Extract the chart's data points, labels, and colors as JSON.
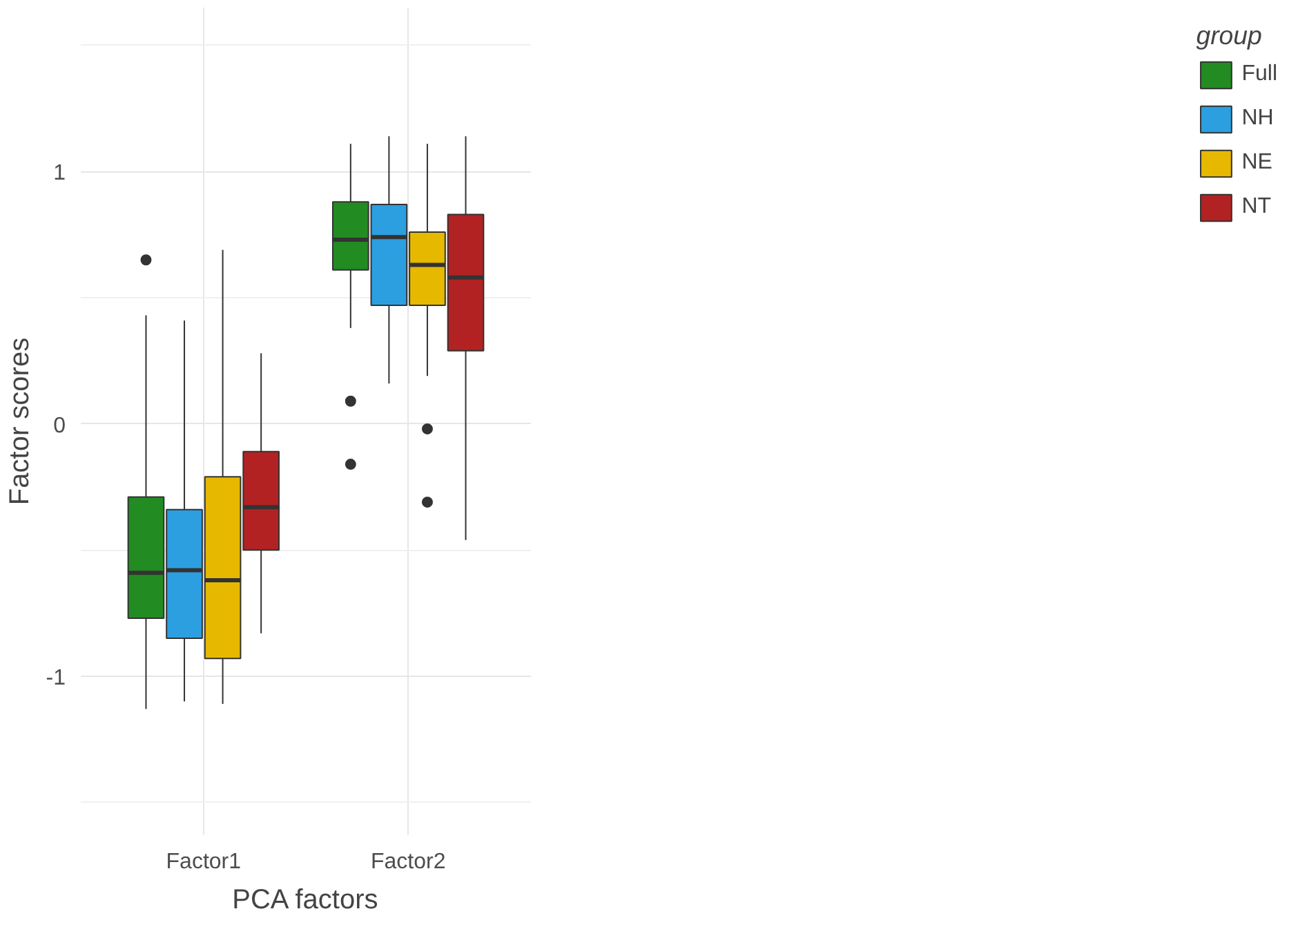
{
  "chart_data": {
    "type": "box",
    "xlabel": "PCA factors",
    "ylabel": "Factor scores",
    "legend_title": "group",
    "categories": [
      "Factor1",
      "Factor2"
    ],
    "series": [
      {
        "name": "Full",
        "color": "#228b22",
        "boxes": [
          {
            "low": -1.13,
            "q1": -0.77,
            "median": -0.59,
            "q3": -0.29,
            "high": 0.43,
            "outliers": [
              0.65
            ]
          },
          {
            "low": 0.38,
            "q1": 0.61,
            "median": 0.73,
            "q3": 0.88,
            "high": 1.11,
            "outliers": [
              0.09,
              -0.16
            ]
          }
        ]
      },
      {
        "name": "NH",
        "color": "#2b9fe0",
        "boxes": [
          {
            "low": -1.1,
            "q1": -0.85,
            "median": -0.58,
            "q3": -0.34,
            "high": 0.41
          },
          {
            "low": 0.16,
            "q1": 0.47,
            "median": 0.74,
            "q3": 0.87,
            "high": 1.14
          }
        ]
      },
      {
        "name": "NE",
        "color": "#e6b800",
        "boxes": [
          {
            "low": -1.11,
            "q1": -0.93,
            "median": -0.62,
            "q3": -0.21,
            "high": 0.69
          },
          {
            "low": 0.19,
            "q1": 0.47,
            "median": 0.63,
            "q3": 0.76,
            "high": 1.11,
            "outliers": [
              -0.02,
              -0.31
            ]
          }
        ]
      },
      {
        "name": "NT",
        "color": "#b22222",
        "boxes": [
          {
            "low": -0.83,
            "q1": -0.5,
            "median": -0.33,
            "q3": -0.11,
            "high": 0.28
          },
          {
            "low": -0.46,
            "q1": 0.29,
            "median": 0.58,
            "q3": 0.83,
            "high": 1.14
          }
        ]
      }
    ],
    "ylim": [
      -1.63,
      1.65
    ],
    "yticks": [
      -1,
      0,
      1
    ],
    "grid": true,
    "legend": "right"
  }
}
